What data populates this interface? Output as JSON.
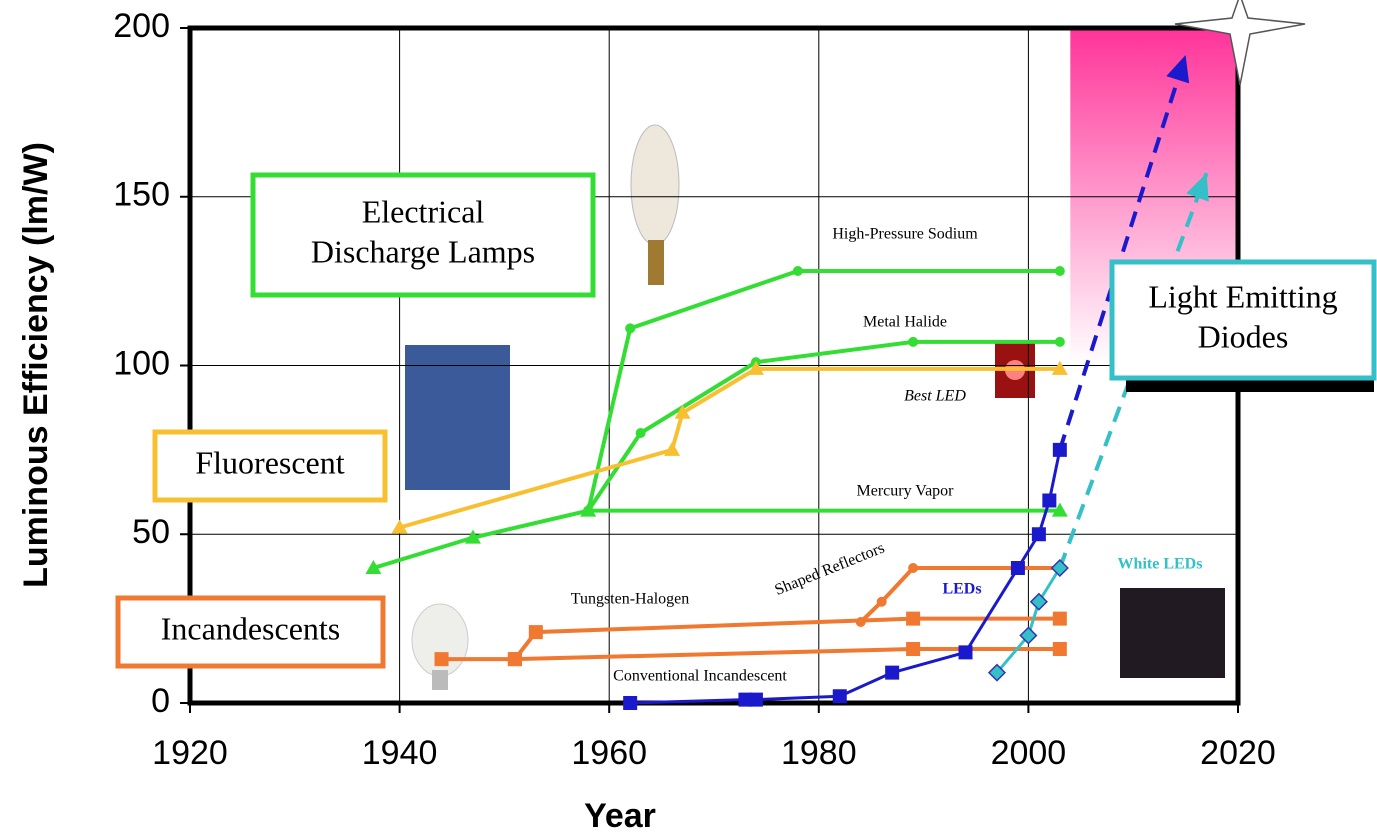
{
  "chart_data": {
    "type": "line",
    "x_label": "Year",
    "y_label": "Luminous Efficiency (lm/W)",
    "xlim": [
      1920,
      2020
    ],
    "xticks": [
      1920,
      1940,
      1960,
      1980,
      2000,
      2020
    ],
    "ylim": [
      0,
      200
    ],
    "yticks": [
      0,
      50,
      100,
      150,
      200
    ],
    "grid": true,
    "series": [
      {
        "name": "Mercury Vapor",
        "color": "#33dd33",
        "marker": "triangle",
        "x": [
          1937.5,
          1947,
          1958,
          2003
        ],
        "values": [
          40,
          49,
          57,
          57
        ]
      },
      {
        "name": "High-Pressure Sodium",
        "color": "#33dd33",
        "marker": "circle",
        "x": [
          1958,
          1962,
          1978,
          2003
        ],
        "values": [
          57,
          111,
          128,
          128
        ]
      },
      {
        "name": "Metal Halide",
        "color": "#33dd33",
        "marker": "circle",
        "x": [
          1958,
          1963,
          1974,
          1989,
          2003
        ],
        "values": [
          57,
          80,
          101,
          107,
          107
        ]
      },
      {
        "name": "Best LED",
        "color": "#f8c030",
        "marker": "triangle",
        "x": [
          1940,
          1966,
          1967,
          1974,
          2003
        ],
        "values": [
          52,
          75,
          86,
          99,
          99
        ]
      },
      {
        "name": "Conventional Incandescent",
        "color": "#f07830",
        "marker": "square",
        "x": [
          1944,
          1951,
          1989,
          2003
        ],
        "values": [
          13,
          13,
          16,
          16
        ]
      },
      {
        "name": "Tungsten-Halogen",
        "color": "#f07830",
        "marker": "square",
        "x": [
          1951,
          1953,
          1989,
          2003
        ],
        "values": [
          13,
          21,
          25,
          25
        ]
      },
      {
        "name": "Shaped Reflectors",
        "color": "#f07830",
        "marker": "circle",
        "x": [
          1984,
          1986,
          1989,
          2003
        ],
        "values": [
          24,
          30,
          40,
          40
        ]
      },
      {
        "name": "LEDs",
        "color": "#1a1acc",
        "marker": "square",
        "x": [
          1962,
          1973,
          1974,
          1982,
          1987,
          1994,
          1999,
          2001,
          2002,
          2003
        ],
        "values": [
          0,
          1,
          1,
          2,
          9,
          15,
          40,
          50,
          60,
          75
        ],
        "trend": {
          "x": [
            2003,
            2015
          ],
          "values": [
            75,
            192
          ]
        }
      },
      {
        "name": "White LEDs",
        "color": "#33c0c8",
        "marker": "diamond",
        "x": [
          1997,
          2000,
          2001,
          2003
        ],
        "values": [
          9,
          20,
          30,
          40
        ],
        "trend": {
          "x": [
            2003,
            2017
          ],
          "values": [
            40,
            157
          ]
        }
      }
    ],
    "target_region": {
      "xlim": [
        2004,
        2020
      ],
      "ylim": [
        100,
        200
      ],
      "color": "#ff3399"
    },
    "annotations": [
      {
        "lines": [
          "Electrical",
          "Discharge Lamps"
        ],
        "color": "#33dd33"
      },
      {
        "lines": [
          "Fluorescent"
        ],
        "color": "#f8c030"
      },
      {
        "lines": [
          "Incandescents"
        ],
        "color": "#f07830"
      },
      {
        "lines": [
          "Light Emitting",
          "Diodes"
        ],
        "color": "#33c0c8"
      }
    ]
  }
}
